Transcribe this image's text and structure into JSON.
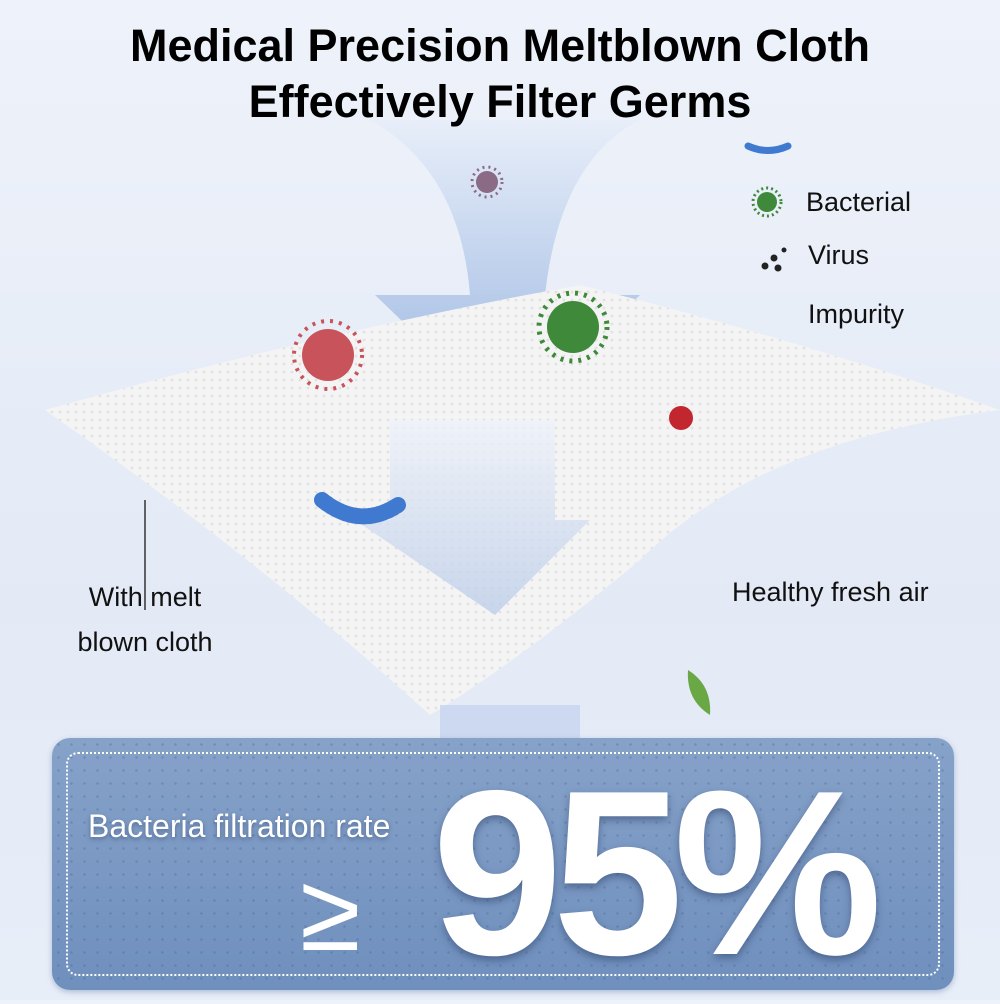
{
  "title": {
    "line1": "Medical Precision Meltblown Cloth",
    "line2": "Effectively Filter Germs"
  },
  "legend": [
    {
      "icon": "bacteria-icon",
      "label": "Bacterial",
      "color": "#3f8a3a"
    },
    {
      "icon": "virus-dots-icon",
      "label": "Virus",
      "color": "#222222"
    },
    {
      "icon": "",
      "label": "Impurity"
    }
  ],
  "labels": {
    "cloth_line1": "With melt",
    "cloth_line2": "blown cloth",
    "fresh_air": "Healthy fresh air"
  },
  "panel": {
    "rate_label": "Bacteria filtration rate",
    "symbol": "≥",
    "value": "95%"
  },
  "colors": {
    "arrow": "#9fb8e0",
    "panel": "#7896c2",
    "text": "#000000"
  }
}
